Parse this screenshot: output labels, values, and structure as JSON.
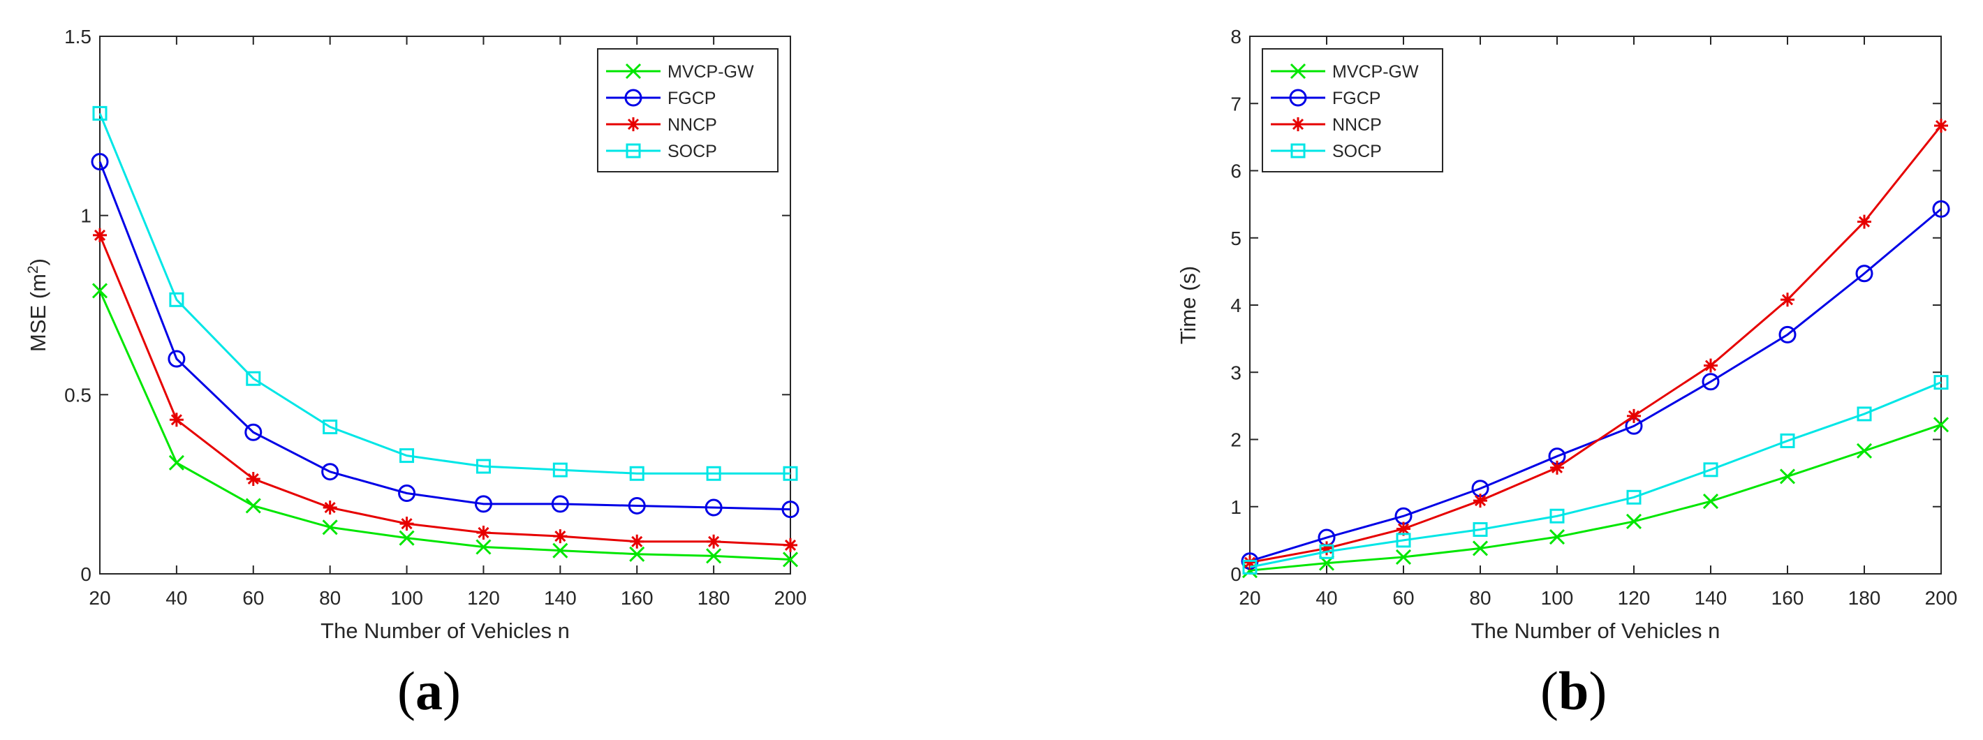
{
  "figure_labels": [
    {
      "open": "(",
      "letter": "a",
      "close": ")"
    },
    {
      "open": "(",
      "letter": "b",
      "close": ")"
    }
  ],
  "chart_data": [
    {
      "type": "line",
      "panel": "a",
      "title": "",
      "xlabel": "The Number of Vehicles n",
      "ylabel_main": "MSE (m",
      "ylabel_sup": "2",
      "ylabel_end": ")",
      "xlim": [
        20,
        200
      ],
      "ylim": [
        0,
        1.5
      ],
      "xticks": [
        "20",
        "40",
        "60",
        "80",
        "100",
        "120",
        "140",
        "160",
        "180",
        "200"
      ],
      "yticks": [
        "0",
        "0.5",
        "1",
        "1.5"
      ],
      "ytick_values": [
        0,
        0.5,
        1,
        1.5
      ],
      "grid": false,
      "legend_position": "top-right",
      "x": [
        20,
        40,
        60,
        80,
        100,
        120,
        140,
        160,
        180,
        200
      ],
      "series": [
        {
          "name": "MVCP-GW",
          "color": "#00e600",
          "marker": "x",
          "values": [
            0.79,
            0.31,
            0.19,
            0.13,
            0.1,
            0.075,
            0.065,
            0.055,
            0.05,
            0.04
          ]
        },
        {
          "name": "FGCP",
          "color": "#0000e6",
          "marker": "circle",
          "values": [
            1.15,
            0.6,
            0.395,
            0.285,
            0.225,
            0.195,
            0.195,
            0.19,
            0.185,
            0.18
          ]
        },
        {
          "name": "NNCP",
          "color": "#e60000",
          "marker": "star",
          "values": [
            0.945,
            0.43,
            0.265,
            0.185,
            0.14,
            0.115,
            0.105,
            0.09,
            0.09,
            0.08
          ]
        },
        {
          "name": "SOCP",
          "color": "#00e6e6",
          "marker": "square",
          "values": [
            1.285,
            0.765,
            0.545,
            0.41,
            0.33,
            0.3,
            0.29,
            0.28,
            0.28,
            0.28
          ]
        }
      ]
    },
    {
      "type": "line",
      "panel": "b",
      "title": "",
      "xlabel": "The Number of Vehicles n",
      "ylabel_main": "Time (s)",
      "ylabel_sup": "",
      "ylabel_end": "",
      "xlim": [
        20,
        200
      ],
      "ylim": [
        0,
        8
      ],
      "xticks": [
        "20",
        "40",
        "60",
        "80",
        "100",
        "120",
        "140",
        "160",
        "180",
        "200"
      ],
      "yticks": [
        "0",
        "1",
        "2",
        "3",
        "4",
        "5",
        "6",
        "7",
        "8"
      ],
      "ytick_values": [
        0,
        1,
        2,
        3,
        4,
        5,
        6,
        7,
        8
      ],
      "grid": false,
      "legend_position": "top-left",
      "x": [
        20,
        40,
        60,
        80,
        100,
        120,
        140,
        160,
        180,
        200
      ],
      "series": [
        {
          "name": "MVCP-GW",
          "color": "#00e600",
          "marker": "x",
          "values": [
            0.05,
            0.16,
            0.25,
            0.38,
            0.55,
            0.78,
            1.08,
            1.45,
            1.83,
            2.22
          ]
        },
        {
          "name": "FGCP",
          "color": "#0000e6",
          "marker": "circle",
          "values": [
            0.19,
            0.54,
            0.86,
            1.27,
            1.75,
            2.2,
            2.86,
            3.56,
            4.47,
            5.43
          ]
        },
        {
          "name": "NNCP",
          "color": "#e60000",
          "marker": "star",
          "values": [
            0.17,
            0.38,
            0.67,
            1.09,
            1.58,
            2.35,
            3.1,
            4.08,
            5.24,
            6.67
          ]
        },
        {
          "name": "SOCP",
          "color": "#00e6e6",
          "marker": "square",
          "values": [
            0.1,
            0.33,
            0.5,
            0.66,
            0.86,
            1.14,
            1.55,
            1.98,
            2.38,
            2.85
          ]
        }
      ]
    }
  ]
}
